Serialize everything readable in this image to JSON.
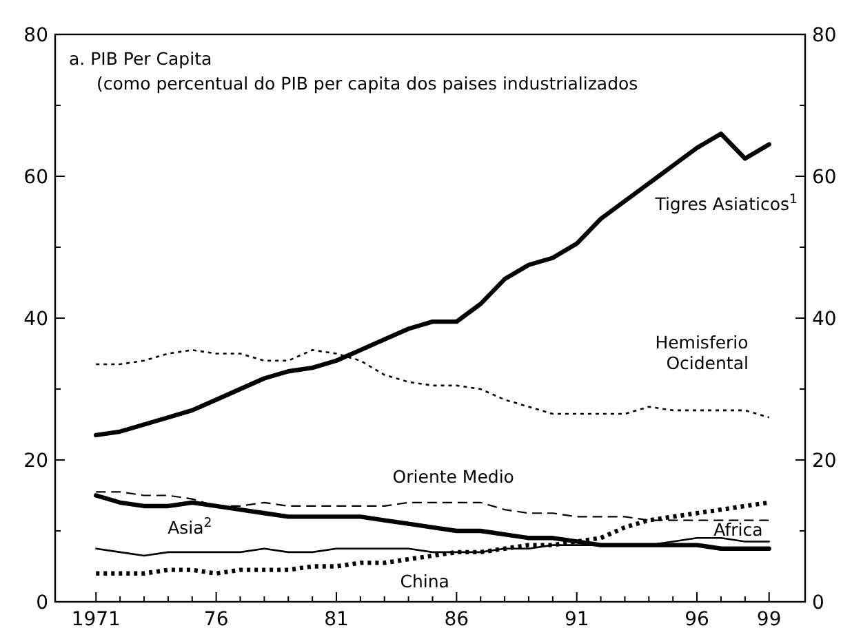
{
  "chart_data": {
    "type": "line",
    "title": "a. PIB Per Capita",
    "subtitle": "(como percentual do PIB per capita dos paises industrializados",
    "x": [
      1971,
      1972,
      1973,
      1974,
      1975,
      1976,
      1977,
      1978,
      1979,
      1980,
      1981,
      1982,
      1983,
      1984,
      1985,
      1986,
      1987,
      1988,
      1989,
      1990,
      1991,
      1992,
      1993,
      1994,
      1995,
      1996,
      1997,
      1998,
      1999
    ],
    "xlim": [
      1969.3,
      2000.5
    ],
    "xticks": [
      {
        "value": 1971,
        "label": "1971"
      },
      {
        "value": 1972,
        "label": null
      },
      {
        "value": 1973,
        "label": null
      },
      {
        "value": 1974,
        "label": null
      },
      {
        "value": 1975,
        "label": null
      },
      {
        "value": 1976,
        "label": "76"
      },
      {
        "value": 1977,
        "label": null
      },
      {
        "value": 1978,
        "label": null
      },
      {
        "value": 1979,
        "label": null
      },
      {
        "value": 1980,
        "label": null
      },
      {
        "value": 1981,
        "label": "81"
      },
      {
        "value": 1982,
        "label": null
      },
      {
        "value": 1983,
        "label": null
      },
      {
        "value": 1984,
        "label": null
      },
      {
        "value": 1985,
        "label": null
      },
      {
        "value": 1986,
        "label": "86"
      },
      {
        "value": 1987,
        "label": null
      },
      {
        "value": 1988,
        "label": null
      },
      {
        "value": 1989,
        "label": null
      },
      {
        "value": 1990,
        "label": null
      },
      {
        "value": 1991,
        "label": "91"
      },
      {
        "value": 1992,
        "label": null
      },
      {
        "value": 1993,
        "label": null
      },
      {
        "value": 1994,
        "label": null
      },
      {
        "value": 1995,
        "label": null
      },
      {
        "value": 1996,
        "label": "96"
      },
      {
        "value": 1997,
        "label": null
      },
      {
        "value": 1998,
        "label": null
      },
      {
        "value": 1999,
        "label": "99"
      }
    ],
    "ylim": [
      0,
      80
    ],
    "yticks": [
      0,
      {
        "value": 10,
        "label": null
      },
      20,
      {
        "value": 30,
        "label": null
      },
      40,
      {
        "value": 50,
        "label": null
      },
      60,
      {
        "value": 70,
        "label": null
      },
      80
    ],
    "y2lim": [
      0,
      80
    ],
    "y2ticks": [
      0,
      {
        "value": 10,
        "label": null
      },
      20,
      {
        "value": 30,
        "label": null
      },
      40,
      {
        "value": 50,
        "label": null
      },
      60,
      {
        "value": 70,
        "label": null
      },
      80
    ],
    "grid": false,
    "legend": false,
    "marker": "none",
    "series": [
      {
        "name": "Tigres Asiaticos$^{1}$",
        "color": "#000000",
        "line_style": "solid",
        "values": [
          23.5,
          24,
          25,
          26,
          27,
          28.5,
          30,
          31.5,
          32.5,
          33,
          34,
          35.5,
          37,
          38.5,
          39.5,
          39.5,
          42,
          45.5,
          47.5,
          48.5,
          50.5,
          54,
          56.5,
          59,
          61.5,
          64,
          66,
          62.5,
          64.5
        ]
      },
      {
        "name": "Hemisferio Ocidental",
        "color": "#000000",
        "line_style": "dotted",
        "values": [
          33.5,
          33.5,
          34,
          35,
          35.5,
          35,
          35,
          34,
          34,
          35.5,
          35,
          34,
          32,
          31,
          30.5,
          30.5,
          30,
          28.5,
          27.5,
          26.5,
          26.5,
          26.5,
          26.5,
          27.5,
          27,
          27,
          27,
          27,
          26
        ]
      },
      {
        "name": "Oriente Medio",
        "color": "#000000",
        "line_style": "dashed",
        "values": [
          15.5,
          15.5,
          15,
          15,
          14.5,
          13.5,
          13.5,
          14,
          13.5,
          13.5,
          13.5,
          13.5,
          13.5,
          14,
          14,
          14,
          14,
          13,
          12.5,
          12.5,
          12,
          12,
          12,
          11.5,
          11.5,
          11.5,
          11.5,
          11.5,
          11.5
        ]
      },
      {
        "name": "Asia$^{2}$",
        "color": "#000000",
        "line_style": "solid",
        "values": [
          15,
          14,
          13.5,
          13.5,
          14,
          13.5,
          13,
          12.5,
          12,
          12,
          12,
          12,
          11.5,
          11,
          10.5,
          10,
          10,
          9.5,
          9,
          9,
          8.5,
          8,
          8,
          8,
          8,
          8,
          7.5,
          7.5,
          7.5
        ]
      },
      {
        "name": "Africa",
        "color": "#000000",
        "line_style": "solid",
        "values": [
          7.5,
          7,
          6.5,
          7,
          7,
          7,
          7,
          7.5,
          7,
          7,
          7.5,
          7.5,
          7.5,
          7.5,
          7,
          7,
          7,
          7.5,
          7.5,
          8,
          8,
          8,
          8,
          8,
          8.5,
          9,
          9,
          8.5,
          8.5
        ]
      },
      {
        "name": "China",
        "color": "#000000",
        "line_style": "dotted",
        "values": [
          4,
          4,
          4,
          4.5,
          4.5,
          4,
          4.5,
          4.5,
          4.5,
          5,
          5,
          5.5,
          5.5,
          6,
          6.5,
          7,
          7,
          7.5,
          8,
          8,
          8.5,
          9,
          10.5,
          11.5,
          12,
          12.5,
          13,
          13.5,
          14
        ]
      }
    ]
  }
}
